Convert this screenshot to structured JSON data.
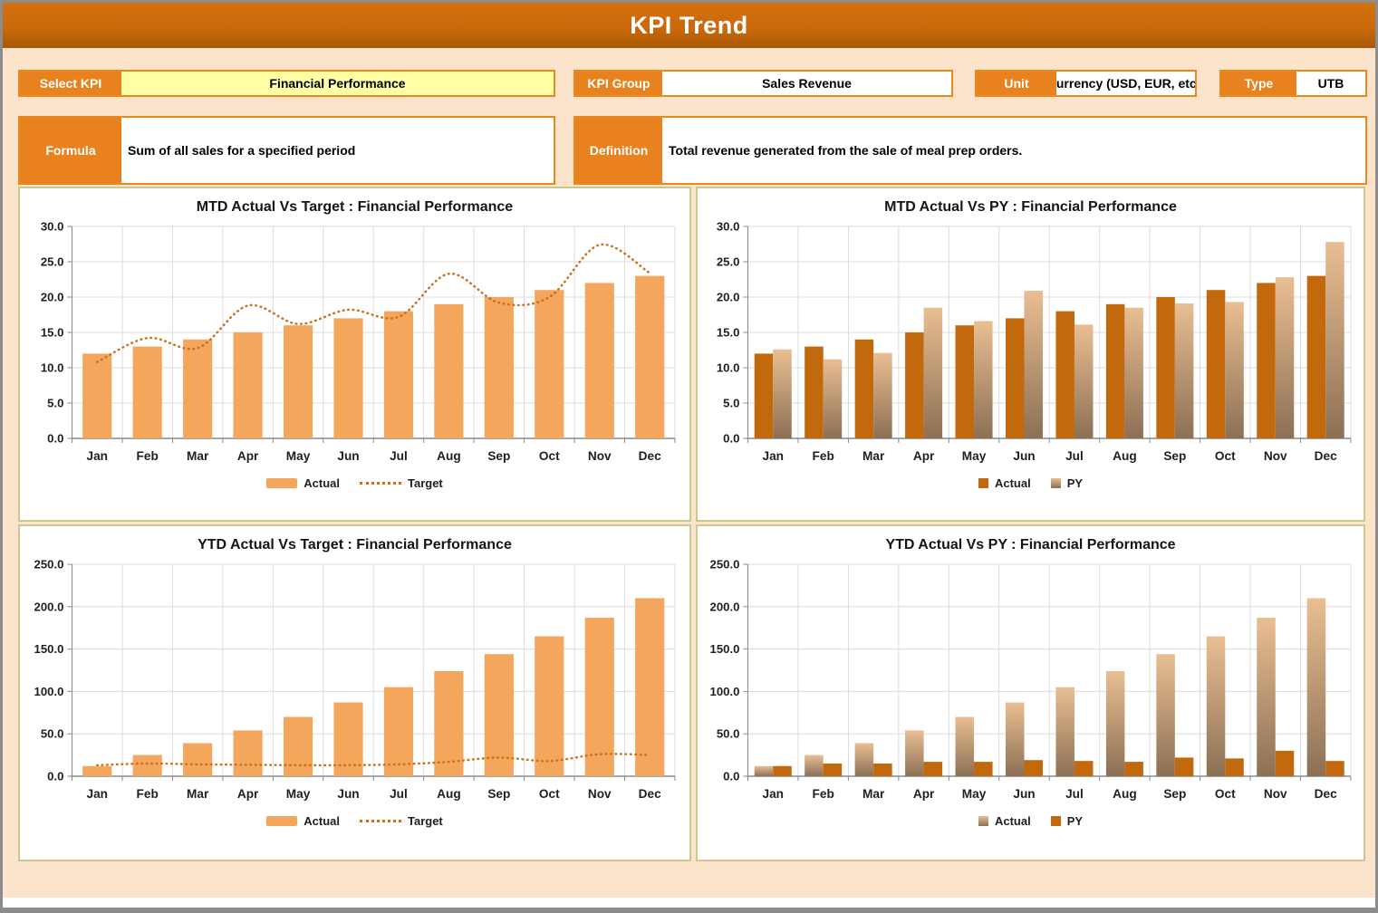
{
  "header": {
    "title": "KPI Trend"
  },
  "controls": {
    "select_kpi": {
      "label": "Select KPI",
      "value": "Financial Performance"
    },
    "kpi_group": {
      "label": "KPI Group",
      "value": "Sales Revenue"
    },
    "unit": {
      "label": "Unit",
      "value": "Currency (USD, EUR, etc.)"
    },
    "type": {
      "label": "Type",
      "value": "UTB"
    },
    "formula": {
      "label": "Formula",
      "value": "Sum of all sales for a specified period"
    },
    "definition": {
      "label": "Definition",
      "value": "Total revenue generated from the sale of meal prep orders."
    }
  },
  "colors": {
    "accent": "#E9821E",
    "bar_light": "#F4A65C",
    "bar_dark": "#C2690E",
    "py_gradient_top": "#E9BE92",
    "py_gradient_bottom": "#8C7055",
    "target_line": "#C9711A",
    "select_field_bg": "#FFFFA6",
    "panel_border": "#C9C98F",
    "gridline": "#DCDCDC"
  },
  "chart_data": [
    {
      "type": "bar",
      "title": "MTD Actual Vs Target : Financial Performance",
      "categories": [
        "Jan",
        "Feb",
        "Mar",
        "Apr",
        "May",
        "Jun",
        "Jul",
        "Aug",
        "Sep",
        "Oct",
        "Nov",
        "Dec"
      ],
      "ylim": [
        0,
        30
      ],
      "ytick": 5,
      "grid": true,
      "legend_position": "bottom",
      "series": [
        {
          "name": "Actual",
          "type": "bar",
          "style": "light",
          "values": [
            12,
            13,
            14,
            15,
            16,
            17,
            18,
            19,
            20,
            21,
            22,
            23
          ]
        },
        {
          "name": "Target",
          "type": "dotted-line",
          "style": "target",
          "values": [
            10.8,
            14.2,
            12.8,
            18.8,
            16.2,
            18.2,
            17.2,
            23.3,
            19.2,
            20.0,
            27.4,
            23.4
          ]
        }
      ]
    },
    {
      "type": "bar",
      "title": "MTD Actual Vs PY : Financial Performance",
      "categories": [
        "Jan",
        "Feb",
        "Mar",
        "Apr",
        "May",
        "Jun",
        "Jul",
        "Aug",
        "Sep",
        "Oct",
        "Nov",
        "Dec"
      ],
      "ylim": [
        0,
        30
      ],
      "ytick": 5,
      "grid": true,
      "legend_position": "bottom",
      "series": [
        {
          "name": "Actual",
          "type": "bar",
          "style": "dark",
          "values": [
            12,
            13,
            14,
            15,
            16,
            17,
            18,
            19,
            20,
            21,
            22,
            23
          ]
        },
        {
          "name": "PY",
          "type": "bar",
          "style": "gradient",
          "values": [
            12.6,
            11.2,
            12.1,
            18.5,
            16.6,
            20.9,
            16.1,
            18.5,
            19.1,
            19.3,
            22.8,
            27.8
          ]
        }
      ]
    },
    {
      "type": "bar",
      "title": "YTD Actual Vs Target : Financial Performance",
      "categories": [
        "Jan",
        "Feb",
        "Mar",
        "Apr",
        "May",
        "Jun",
        "Jul",
        "Aug",
        "Sep",
        "Oct",
        "Nov",
        "Dec"
      ],
      "ylim": [
        0,
        250
      ],
      "ytick": 50,
      "grid": true,
      "legend_position": "bottom",
      "series": [
        {
          "name": "Actual",
          "type": "bar",
          "style": "light",
          "values": [
            12,
            25,
            39,
            54,
            70,
            87,
            105,
            124,
            144,
            165,
            187,
            210
          ]
        },
        {
          "name": "Target",
          "type": "dotted-line",
          "style": "target",
          "values": [
            13,
            15,
            14,
            13.5,
            13,
            13,
            14,
            17,
            22,
            18,
            26,
            25
          ]
        }
      ]
    },
    {
      "type": "bar",
      "title": "YTD Actual Vs PY : Financial Performance",
      "categories": [
        "Jan",
        "Feb",
        "Mar",
        "Apr",
        "May",
        "Jun",
        "Jul",
        "Aug",
        "Sep",
        "Oct",
        "Nov",
        "Dec"
      ],
      "ylim": [
        0,
        250
      ],
      "ytick": 50,
      "grid": true,
      "legend_position": "bottom",
      "series": [
        {
          "name": "Actual",
          "type": "bar",
          "style": "gradient",
          "values": [
            12,
            25,
            39,
            54,
            70,
            87,
            105,
            124,
            144,
            165,
            187,
            210
          ]
        },
        {
          "name": "PY",
          "type": "bar",
          "style": "dark",
          "values": [
            12,
            15,
            15,
            17,
            17,
            19,
            18,
            17,
            22,
            21,
            30,
            18
          ]
        }
      ]
    }
  ]
}
